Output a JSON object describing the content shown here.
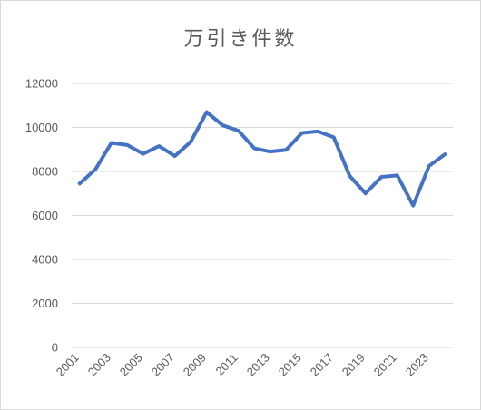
{
  "chart_data": {
    "type": "line",
    "title": "万引き件数",
    "xlabel": "",
    "ylabel": "",
    "x": [
      2001,
      2002,
      2003,
      2004,
      2005,
      2006,
      2007,
      2008,
      2009,
      2010,
      2011,
      2012,
      2013,
      2014,
      2015,
      2016,
      2017,
      2018,
      2019,
      2020,
      2021,
      2022,
      2023,
      2024
    ],
    "x_tick_labels": [
      "2001",
      "2003",
      "2005",
      "2007",
      "2009",
      "2011",
      "2013",
      "2015",
      "2017",
      "2019",
      "2021",
      "2023"
    ],
    "series": [
      {
        "color": "#4472c4",
        "values": [
          7450,
          8100,
          9300,
          9200,
          8800,
          9150,
          8700,
          9350,
          10700,
          10100,
          9850,
          9050,
          8900,
          8980,
          9750,
          9820,
          9550,
          7800,
          7000,
          7750,
          7820,
          6450,
          8250,
          8780
        ]
      }
    ],
    "ylim": [
      0,
      12000
    ],
    "y_ticks": [
      0,
      2000,
      4000,
      6000,
      8000,
      10000,
      12000
    ],
    "grid": true,
    "legend": "none",
    "colors": {
      "line": "#4472c4",
      "grid": "#d9d9d9",
      "text": "#595959"
    }
  }
}
